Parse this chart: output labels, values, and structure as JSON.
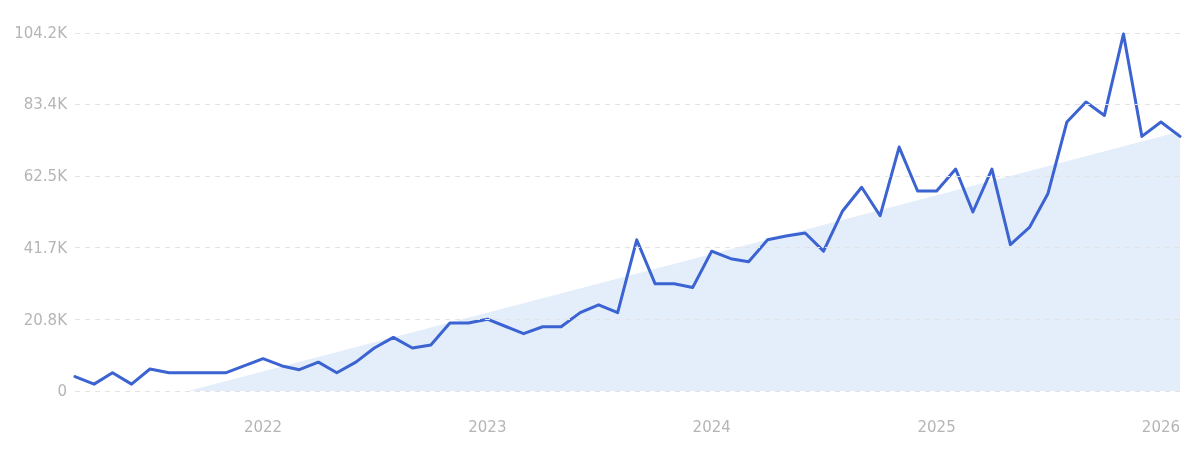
{
  "chart_data": {
    "type": "line",
    "x": [
      "2021-03",
      "2021-04",
      "2021-05",
      "2021-06",
      "2021-07",
      "2021-08",
      "2021-09",
      "2021-10",
      "2021-11",
      "2021-12",
      "2022-01",
      "2022-02",
      "2022-03",
      "2022-04",
      "2022-05",
      "2022-06",
      "2022-07",
      "2022-08",
      "2022-09",
      "2022-10",
      "2022-11",
      "2022-12",
      "2023-01",
      "2023-02",
      "2023-03",
      "2023-04",
      "2023-05",
      "2023-06",
      "2023-07",
      "2023-08",
      "2023-09",
      "2023-10",
      "2023-11",
      "2023-12",
      "2024-01",
      "2024-02",
      "2024-03",
      "2024-04",
      "2024-05",
      "2024-06",
      "2024-07",
      "2024-08",
      "2024-09",
      "2024-10",
      "2024-11",
      "2024-12",
      "2025-01",
      "2025-02",
      "2025-03",
      "2025-04",
      "2025-05",
      "2025-06",
      "2025-07",
      "2025-08",
      "2025-09",
      "2025-10",
      "2025-11",
      "2025-12",
      "2026-01",
      "2026-02"
    ],
    "series": [
      {
        "type": "area",
        "color": "#e4eefb",
        "x": [
          "2021-09",
          "2026-02"
        ],
        "values": [
          0,
          75500
        ]
      },
      {
        "color": "#3b63d1",
        "values": [
          4200,
          2000,
          5300,
          2000,
          6400,
          5300,
          5300,
          5300,
          5300,
          7300,
          9400,
          7300,
          6200,
          8400,
          5300,
          8400,
          12500,
          15600,
          12500,
          13400,
          19800,
          19800,
          20900,
          18700,
          16700,
          18700,
          18700,
          22800,
          25100,
          22800,
          44000,
          31200,
          31200,
          30100,
          40700,
          38500,
          37600,
          44000,
          45100,
          46000,
          40700,
          52400,
          59300,
          51000,
          71000,
          58200,
          58200,
          64600,
          52100,
          64600,
          42600,
          47600,
          57400,
          78300,
          84100,
          80200,
          103900,
          74100,
          78300,
          74100
        ]
      }
    ],
    "xlim": [
      "2021-03",
      "2026-02"
    ],
    "xticks": [
      {
        "value": "2022",
        "label": "2022"
      },
      {
        "value": "2023",
        "label": "2023"
      },
      {
        "value": "2024",
        "label": "2024"
      },
      {
        "value": "2025",
        "label": "2025"
      },
      {
        "value": "2026",
        "label": "2026"
      }
    ],
    "ylim": [
      0,
      104200
    ],
    "yticks": [
      {
        "value": 0,
        "label": "0"
      },
      {
        "value": 20800,
        "label": "20.8K"
      },
      {
        "value": 41700,
        "label": "41.7K"
      },
      {
        "value": 62500,
        "label": "62.5K"
      },
      {
        "value": 83400,
        "label": "83.4K"
      },
      {
        "value": 104200,
        "label": "104.2K"
      }
    ],
    "grid": "y",
    "marker": "none",
    "line_style": "solid"
  }
}
